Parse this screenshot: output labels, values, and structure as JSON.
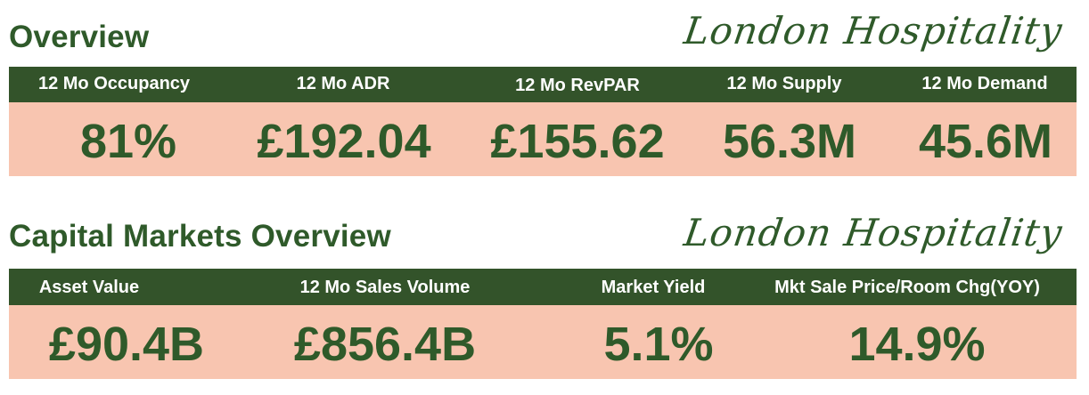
{
  "colors": {
    "green": "#2f5a2a",
    "header_green": "#33532a",
    "salmon": "#f8c5b0"
  },
  "overview": {
    "title": "Overview",
    "brand": "London Hospitality",
    "metrics": [
      {
        "label": "12 Mo Occupancy",
        "value": "81%"
      },
      {
        "label": "12 Mo ADR",
        "value": "£192.04"
      },
      {
        "label": "12 Mo RevPAR",
        "value": "£155.62"
      },
      {
        "label": "12 Mo Supply",
        "value": "56.3M"
      },
      {
        "label": "12 Mo Demand",
        "value": "45.6M"
      }
    ]
  },
  "capital": {
    "title": "Capital Markets Overview",
    "brand": "London Hospitality",
    "metrics": [
      {
        "label": "Asset Value",
        "value": "£90.4B"
      },
      {
        "label": "12 Mo Sales Volume",
        "value": "£856.4B"
      },
      {
        "label": "Market Yield",
        "value": "5.1%"
      },
      {
        "label": "Mkt Sale Price/Room Chg(YOY)",
        "value": "14.9%"
      }
    ]
  }
}
